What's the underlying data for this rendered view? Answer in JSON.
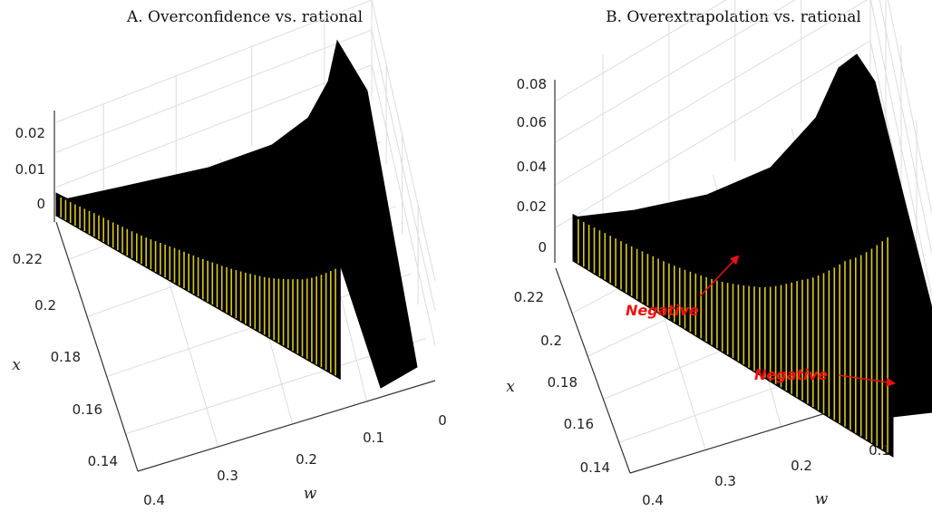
{
  "chart_data": [
    {
      "type": "surface",
      "title": "A. Overconfidence vs. rational",
      "xlabel": "w",
      "ylabel": "x",
      "zlabel": "",
      "w_ticks": [
        "0.4",
        "0.3",
        "0.2",
        "0.1",
        "0"
      ],
      "x_ticks": [
        "0.22",
        "0.2",
        "0.18",
        "0.16",
        "0.14"
      ],
      "z_ticks": [
        "0.02",
        "0.01",
        "0"
      ],
      "wlim": [
        0,
        0.4
      ],
      "xlim": [
        0.13,
        0.23
      ],
      "zlim": [
        0,
        0.025
      ],
      "grid": true,
      "surface_color": "#000000",
      "edge_color": "#d8c81e",
      "edge_profile": {
        "w": [
          0.4,
          0.35,
          0.3,
          0.25,
          0.2,
          0.15,
          0.1,
          0.05
        ],
        "z_max": [
          0.002,
          0.003,
          0.004,
          0.006,
          0.008,
          0.011,
          0.016,
          0.025
        ]
      },
      "annotations": []
    },
    {
      "type": "surface",
      "title": "B. Overextrapolation vs. rational",
      "xlabel": "w",
      "ylabel": "x",
      "zlabel": "",
      "w_ticks": [
        "0.4",
        "0.3",
        "0.2",
        "0.1"
      ],
      "x_ticks": [
        "0.22",
        "0.2",
        "0.18",
        "0.16",
        "0.14"
      ],
      "z_ticks": [
        "0.08",
        "0.06",
        "0.04",
        "0.02",
        "0"
      ],
      "wlim": [
        0.05,
        0.4
      ],
      "xlim": [
        0.13,
        0.23
      ],
      "zlim": [
        0,
        0.085
      ],
      "grid": true,
      "surface_color": "#000000",
      "edge_color": "#d8c81e",
      "edge_profile": {
        "w": [
          0.4,
          0.35,
          0.3,
          0.25,
          0.2,
          0.15,
          0.1,
          0.05
        ],
        "z_max": [
          0.003,
          0.005,
          0.008,
          0.013,
          0.022,
          0.038,
          0.06,
          0.085
        ]
      },
      "annotations": [
        {
          "text": "Negative"
        },
        {
          "text": "Negative"
        }
      ]
    }
  ]
}
